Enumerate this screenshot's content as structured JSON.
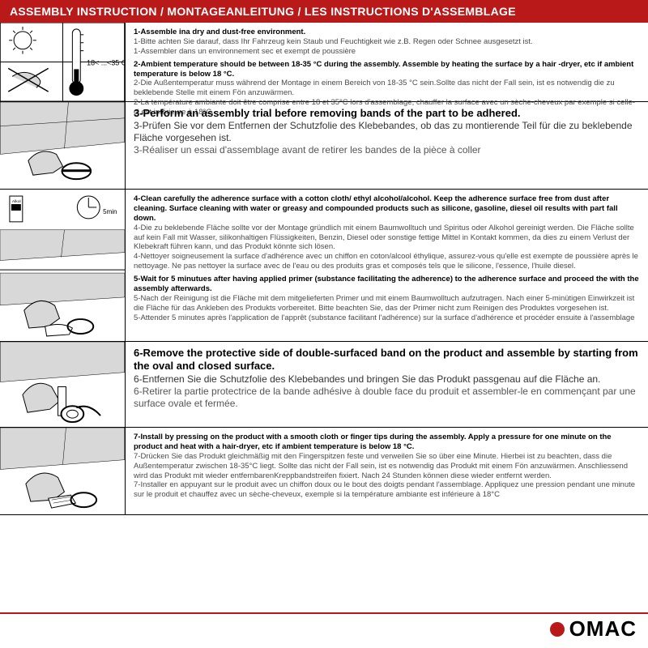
{
  "colors": {
    "header_bg": "#b91919",
    "header_text": "#ffffff",
    "body_text": "#4a4a4a",
    "bold_text": "#000000",
    "border": "#000000",
    "logo_red": "#b91919"
  },
  "header": {
    "title": "ASSEMBLY INSTRUCTION / MONTAGEANLEITUNG / LES INSTRUCTIONS D'ASSEMBLAGE"
  },
  "sections": [
    {
      "height": 98,
      "illust_type": "temp",
      "steps": [
        {
          "en": "1-Assemble ina dry and dust-free environment.",
          "de": "1-Bitte achten Sie darauf, dass Ihr Fahrzeug kein Staub und Feuchtigkeit wie z.B. Regen oder Schnee ausgesetzt ist.",
          "fr": "1-Assembler dans un environnement sec et exempt de poussière"
        },
        {
          "en": "2-Ambient temperature should be between 18-35 °C  during the assembly. Assemble by heating the surface by a hair -dryer, etc if ambient temperature is below 18 °C.",
          "de": "2-Die Außentemperatur muss während der Montage in einem Bereich von 18-35 °C  sein.Sollte das nicht der Fall sein, ist es notwendig die zu beklebende Stelle mit einem Fön anzuwärmen.",
          "fr": "2-La température ambiante doit être comprise entre 18 et 35°C lors d'assemblage, chauffer la surface avec un sèche-cheveux par exemple si celle-ci est inférieure à 18°C."
        }
      ]
    },
    {
      "height": 108,
      "illust_type": "trial",
      "big": true,
      "steps": [
        {
          "en": "3-Perform an assembly trial before removing bands of the part to be adhered.",
          "de": "3-Prüfen Sie vor dem Entfernen der Schutzfolie des Klebebandes, ob das zu montierende Teil für die zu beklebende Fläche vorgesehen ist.",
          "fr": "3-Réaliser un essai d'assemblage avant de retirer les bandes de la pièce à coller"
        }
      ]
    },
    {
      "height": 188,
      "illust_type": "clean",
      "steps": [
        {
          "en": "4-Clean carefully the adherence surface with a cotton cloth/ ethyl alcohol/alcohol. Keep the adherence surface free from dust after cleaning. Surface cleaning with water or greasy and compounded products such as silicone, gasoline, diesel oil results with part fall down.",
          "de": "4-Die zu beklebende Fläche sollte vor der Montage gründlich mit einem Baumwolltuch und Spiritus oder Alkohol gereinigt werden. Die Fläche sollte auf kein Fall mit Wasser, silikonhaltigen Flüssigkeiten, Benzin, Diesel oder sonstige fettige Mittel in Kontakt kommen, da dies zu einem Verlust der Klebekraft führen kann, und das Produkt könnte sich lösen.",
          "fr": "4-Nettoyer soigneusement la surface d'adhérence avec un chiffon en coton/alcool éthylique, assurez-vous qu'elle est exempte de poussière après le nettoyage. Ne pas nettoyer la surface avec de l'eau ou des produits gras et composés tels que le silicone, l'essence, l'huile diesel."
        },
        {
          "en": "5-Wait for 5 minutues after having applied primer (substance facilitating the adherence) to the adherence surface and proceed the with the assembly afterwards.",
          "de": "5-Nach der Reinigung ist die Fläche mit dem mitgelieferten Primer und mit einem Baumwolltuch aufzutragen. Nach einer 5-minütigen Einwirkzeit ist die Fläche für das Ankleben des Produkts vorbereitet. Bitte beachten Sie, das der Primer nicht zum Reinigen des Produktes vorgesehen ist.",
          "fr": "5-Attender 5 minutes après l'application de l'apprêt (substance facilitant l'adhérence) sur la surface d'adhérence et procéder ensuite à l'assemblage"
        }
      ]
    },
    {
      "height": 106,
      "illust_type": "remove",
      "big": true,
      "steps": [
        {
          "en": "6-Remove the protective side of double-surfaced band on the product and assemble by starting from the oval and closed surface.",
          "de": "6-Entfernen Sie die Schutzfolie des Klebebandes und bringen Sie das Produkt passgenau auf die Fläche an.",
          "fr": "6-Retirer la partie protectrice de la bande adhésive à double face du produit et assembler-le en commençant par une surface ovale et fermée."
        }
      ]
    },
    {
      "height": 108,
      "illust_type": "press",
      "steps": [
        {
          "en": "7-Install by pressing on the product with a smooth cloth or finger tips during the assembly. Apply a pressure for one minute on the product and heat with a hair-dryer, etc if ambient temperature is below 18 °C.",
          "de": "7-Drücken Sie das Produkt gleichmäßig mit den Fingerspitzen feste und verweilen Sie so über eine Minute. Hierbei ist zu beachten, dass die Außentemperatur zwischen 18-35°C liegt. Sollte das nicht der Fall sein, ist es notwendig das Produkt mit einem Fön anzuwärmen. Anschliessend wird das Produkt mit wieder entfernbarenKreppbandstreifen fixiert. Nach 24 Stunden können diese wieder entfernt werden.",
          "fr": "7-Installer en appuyant sur le produit avec un chiffon doux ou le bout des doigts pendant l'assemblage. Appliquez une pression pendant une minute sur le produit et chauffez avec un sèche-cheveux, exemple si la température ambiante est inférieure à 18°C"
        }
      ]
    }
  ],
  "logo": {
    "text": "OMAC"
  }
}
